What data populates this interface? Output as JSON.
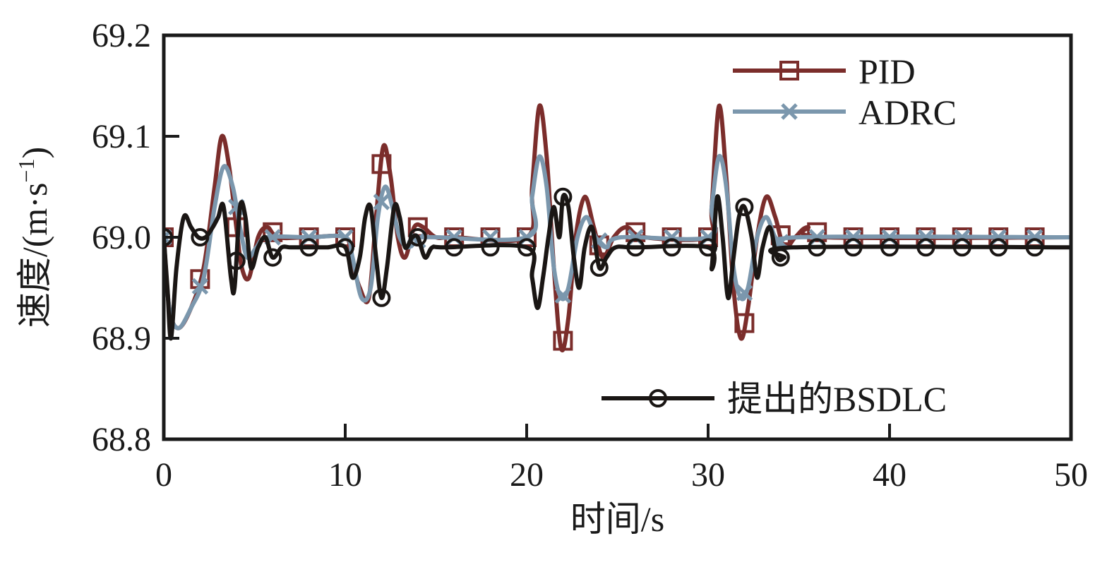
{
  "chart_data": {
    "type": "line",
    "xlabel": "时间/s",
    "ylabel_main": "速度/(m·s",
    "ylabel_sup": "−1",
    "ylabel_tail": ")",
    "xlim": [
      0,
      50
    ],
    "ylim": [
      68.8,
      69.2
    ],
    "xticks": [
      0,
      10,
      20,
      30,
      40,
      50
    ],
    "xtick_labels": [
      "0",
      "10",
      "20",
      "30",
      "40",
      "50"
    ],
    "yticks": [
      68.8,
      68.9,
      69.0,
      69.1,
      69.2
    ],
    "ytick_labels": [
      "68.8",
      "68.9",
      "69.0",
      "69.1",
      "69.2"
    ],
    "grid": false,
    "legend": [
      {
        "name": "PID",
        "position": "top-right"
      },
      {
        "name": "ADRC",
        "position": "top-right"
      },
      {
        "name": "提出的BSDLC",
        "position": "bottom-right"
      }
    ],
    "series": [
      {
        "name": "PID",
        "color": "#7b2d2b",
        "marker": "square",
        "points": [
          [
            0,
            69.0
          ],
          [
            0.3,
            68.93
          ],
          [
            0.8,
            68.91
          ],
          [
            1.5,
            68.93
          ],
          [
            2.2,
            68.97
          ],
          [
            2.8,
            69.05
          ],
          [
            3.2,
            69.1
          ],
          [
            3.6,
            69.07
          ],
          [
            4.0,
            69.01
          ],
          [
            4.3,
            68.97
          ],
          [
            4.7,
            68.96
          ],
          [
            5.2,
            69.0
          ],
          [
            5.7,
            69.01
          ],
          [
            6.3,
            69.0
          ],
          [
            8,
            69.0
          ],
          [
            10,
            69.0
          ],
          [
            10.3,
            68.98
          ],
          [
            10.8,
            68.95
          ],
          [
            11.3,
            68.94
          ],
          [
            11.7,
            69.02
          ],
          [
            12.1,
            69.09
          ],
          [
            12.5,
            69.06
          ],
          [
            12.9,
            69.0
          ],
          [
            13.3,
            68.98
          ],
          [
            13.8,
            69.01
          ],
          [
            14.3,
            69.01
          ],
          [
            15,
            69.0
          ],
          [
            16,
            69.0
          ],
          [
            20,
            69.0
          ],
          [
            20.3,
            69.05
          ],
          [
            20.7,
            69.13
          ],
          [
            21.1,
            69.08
          ],
          [
            21.5,
            68.97
          ],
          [
            21.9,
            68.89
          ],
          [
            22.3,
            68.92
          ],
          [
            22.7,
            69.0
          ],
          [
            23.2,
            69.04
          ],
          [
            23.7,
            69.01
          ],
          [
            24.2,
            68.98
          ],
          [
            24.8,
            69.0
          ],
          [
            25.5,
            69.01
          ],
          [
            26.5,
            69.0
          ],
          [
            30,
            69.0
          ],
          [
            30.2,
            69.03
          ],
          [
            30.6,
            69.13
          ],
          [
            31.0,
            69.06
          ],
          [
            31.4,
            68.95
          ],
          [
            31.8,
            68.9
          ],
          [
            32.2,
            68.93
          ],
          [
            32.7,
            69.0
          ],
          [
            33.2,
            69.04
          ],
          [
            33.7,
            69.02
          ],
          [
            34.2,
            68.99
          ],
          [
            34.8,
            69.0
          ],
          [
            35.5,
            69.01
          ],
          [
            36.5,
            69.0
          ],
          [
            50,
            69.0
          ]
        ],
        "marker_x": [
          0,
          2,
          4,
          6,
          8,
          10,
          12,
          14,
          16,
          18,
          20,
          22,
          24,
          26,
          28,
          30,
          32,
          34,
          36,
          38,
          40,
          42,
          44,
          46,
          48
        ]
      },
      {
        "name": "ADRC",
        "color": "#7b97ad",
        "marker": "x",
        "points": [
          [
            0,
            69.0
          ],
          [
            0.3,
            68.93
          ],
          [
            0.8,
            68.91
          ],
          [
            1.5,
            68.93
          ],
          [
            2.2,
            68.96
          ],
          [
            2.8,
            69.03
          ],
          [
            3.3,
            69.07
          ],
          [
            3.8,
            69.05
          ],
          [
            4.2,
            69.01
          ],
          [
            4.6,
            68.98
          ],
          [
            5.1,
            68.99
          ],
          [
            5.7,
            69.0
          ],
          [
            8,
            69.0
          ],
          [
            10,
            69.0
          ],
          [
            10.4,
            68.98
          ],
          [
            10.9,
            68.94
          ],
          [
            11.4,
            68.95
          ],
          [
            11.8,
            69.02
          ],
          [
            12.2,
            69.05
          ],
          [
            12.6,
            69.03
          ],
          [
            13.0,
            69.0
          ],
          [
            13.5,
            68.99
          ],
          [
            14.2,
            69.0
          ],
          [
            20,
            69.0
          ],
          [
            20.3,
            69.04
          ],
          [
            20.7,
            69.08
          ],
          [
            21.1,
            69.05
          ],
          [
            21.5,
            68.97
          ],
          [
            21.9,
            68.94
          ],
          [
            22.3,
            68.95
          ],
          [
            22.8,
            69.0
          ],
          [
            23.3,
            69.02
          ],
          [
            23.8,
            69.0
          ],
          [
            24.4,
            68.99
          ],
          [
            25.2,
            69.0
          ],
          [
            30,
            69.0
          ],
          [
            30.2,
            69.03
          ],
          [
            30.6,
            69.08
          ],
          [
            31.0,
            69.05
          ],
          [
            31.4,
            68.97
          ],
          [
            31.8,
            68.94
          ],
          [
            32.2,
            68.95
          ],
          [
            32.7,
            69.0
          ],
          [
            33.2,
            69.02
          ],
          [
            33.7,
            69.0
          ],
          [
            34.3,
            68.99
          ],
          [
            35.0,
            69.0
          ],
          [
            50,
            69.0
          ]
        ],
        "marker_x": [
          0,
          2,
          4,
          6,
          8,
          10,
          12,
          14,
          16,
          18,
          20,
          22,
          24,
          26,
          28,
          30,
          32,
          34,
          36,
          38,
          40,
          42,
          44,
          46,
          48
        ]
      },
      {
        "name": "提出的BSDLC",
        "color": "#1a1614",
        "marker": "circle",
        "points": [
          [
            0,
            69.0
          ],
          [
            0.2,
            68.95
          ],
          [
            0.4,
            68.9
          ],
          [
            0.7,
            68.97
          ],
          [
            1.1,
            69.02
          ],
          [
            1.5,
            69.01
          ],
          [
            1.9,
            69.0
          ],
          [
            2.3,
            69.0
          ],
          [
            2.7,
            69.01
          ],
          [
            3.0,
            69.02
          ],
          [
            3.3,
            69.03
          ],
          [
            3.7,
            68.96
          ],
          [
            3.9,
            68.95
          ],
          [
            4.2,
            69.03
          ],
          [
            4.5,
            69.02
          ],
          [
            4.8,
            68.97
          ],
          [
            5.2,
            68.99
          ],
          [
            5.6,
            69.0
          ],
          [
            6.0,
            68.98
          ],
          [
            6.5,
            68.99
          ],
          [
            7,
            68.99
          ],
          [
            8,
            68.99
          ],
          [
            9,
            68.99
          ],
          [
            10,
            68.99
          ],
          [
            10.4,
            68.96
          ],
          [
            10.8,
            68.98
          ],
          [
            11.1,
            69.02
          ],
          [
            11.4,
            69.03
          ],
          [
            11.7,
            68.98
          ],
          [
            12.0,
            68.94
          ],
          [
            12.3,
            68.97
          ],
          [
            12.7,
            69.03
          ],
          [
            13.0,
            69.02
          ],
          [
            13.3,
            68.99
          ],
          [
            13.7,
            69.0
          ],
          [
            14.0,
            69.0
          ],
          [
            14.4,
            68.98
          ],
          [
            14.8,
            68.99
          ],
          [
            15.5,
            68.99
          ],
          [
            20,
            68.99
          ],
          [
            20.3,
            68.96
          ],
          [
            20.6,
            68.93
          ],
          [
            20.9,
            68.96
          ],
          [
            21.2,
            69.0
          ],
          [
            21.5,
            69.03
          ],
          [
            21.8,
            69.0
          ],
          [
            22.0,
            69.04
          ],
          [
            22.3,
            69.03
          ],
          [
            22.6,
            68.98
          ],
          [
            22.9,
            68.95
          ],
          [
            23.2,
            68.99
          ],
          [
            23.6,
            69.01
          ],
          [
            24.0,
            68.97
          ],
          [
            24.4,
            68.98
          ],
          [
            24.9,
            68.99
          ],
          [
            26,
            68.99
          ],
          [
            30,
            68.99
          ],
          [
            30.2,
            68.97
          ],
          [
            30.5,
            69.04
          ],
          [
            30.8,
            69.0
          ],
          [
            31.1,
            68.94
          ],
          [
            31.4,
            68.98
          ],
          [
            31.7,
            69.02
          ],
          [
            32.0,
            69.03
          ],
          [
            32.4,
            69.0
          ],
          [
            32.7,
            68.96
          ],
          [
            33.0,
            68.99
          ],
          [
            33.4,
            69.01
          ],
          [
            33.8,
            68.98
          ],
          [
            34.2,
            68.98
          ],
          [
            34.7,
            68.99
          ],
          [
            50,
            68.99
          ]
        ],
        "marker_x": [
          0,
          2,
          4,
          6,
          8,
          10,
          12,
          14,
          16,
          18,
          20,
          22,
          24,
          26,
          28,
          30,
          32,
          34,
          36,
          38,
          40,
          42,
          44,
          46,
          48
        ]
      }
    ]
  }
}
